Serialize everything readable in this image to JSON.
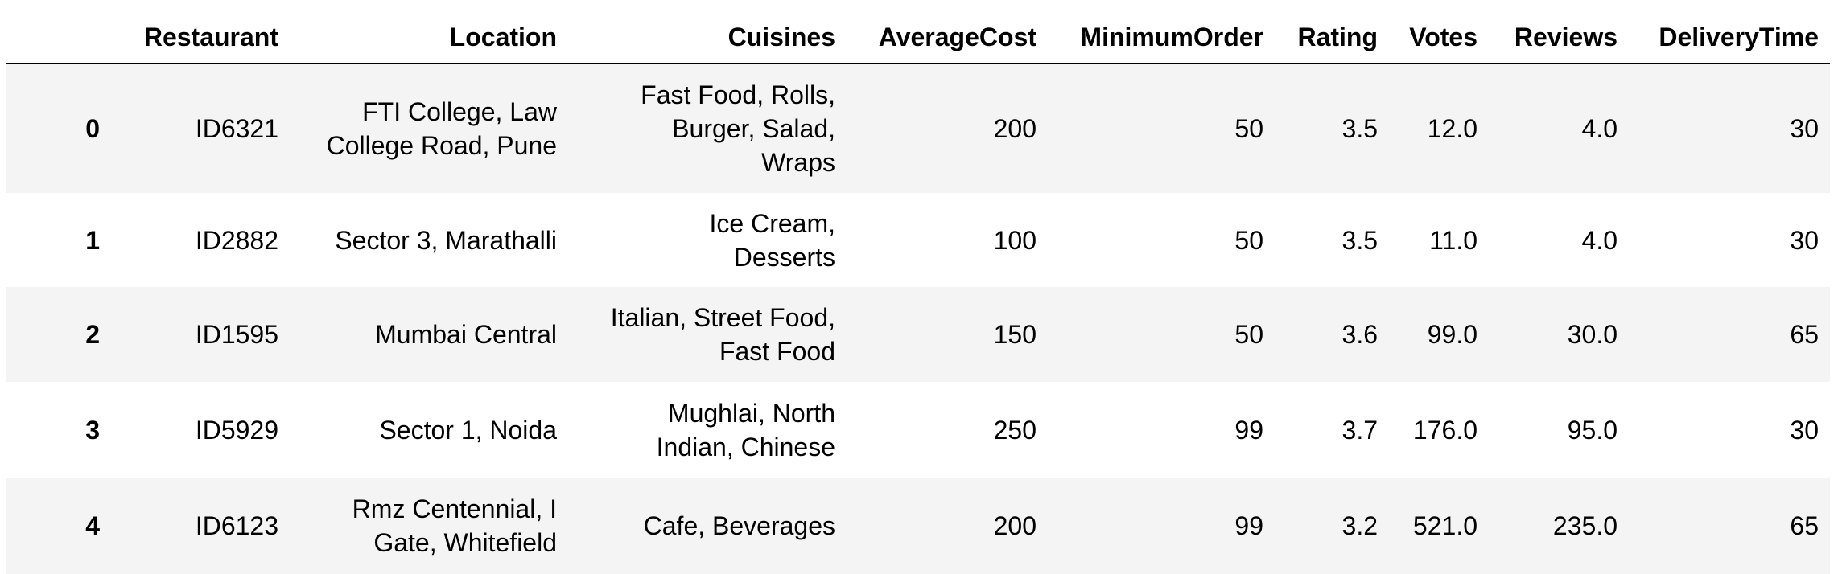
{
  "table": {
    "columns": [
      "",
      "Restaurant",
      "Location",
      "Cuisines",
      "AverageCost",
      "MinimumOrder",
      "Rating",
      "Votes",
      "Reviews",
      "DeliveryTime"
    ],
    "rows": [
      {
        "index": "0",
        "Restaurant": "ID6321",
        "Location": [
          "FTI College, Law",
          "College Road, Pune"
        ],
        "Cuisines": [
          "Fast Food, Rolls,",
          "Burger, Salad,",
          "Wraps"
        ],
        "AverageCost": "200",
        "MinimumOrder": "50",
        "Rating": "3.5",
        "Votes": "12.0",
        "Reviews": "4.0",
        "DeliveryTime": "30"
      },
      {
        "index": "1",
        "Restaurant": "ID2882",
        "Location": [
          "Sector 3, Marathalli"
        ],
        "Cuisines": [
          "Ice Cream,",
          "Desserts"
        ],
        "AverageCost": "100",
        "MinimumOrder": "50",
        "Rating": "3.5",
        "Votes": "11.0",
        "Reviews": "4.0",
        "DeliveryTime": "30"
      },
      {
        "index": "2",
        "Restaurant": "ID1595",
        "Location": [
          "Mumbai Central"
        ],
        "Cuisines": [
          "Italian, Street Food,",
          "Fast Food"
        ],
        "AverageCost": "150",
        "MinimumOrder": "50",
        "Rating": "3.6",
        "Votes": "99.0",
        "Reviews": "30.0",
        "DeliveryTime": "65"
      },
      {
        "index": "3",
        "Restaurant": "ID5929",
        "Location": [
          "Sector 1, Noida"
        ],
        "Cuisines": [
          "Mughlai, North",
          "Indian, Chinese"
        ],
        "AverageCost": "250",
        "MinimumOrder": "99",
        "Rating": "3.7",
        "Votes": "176.0",
        "Reviews": "95.0",
        "DeliveryTime": "30"
      },
      {
        "index": "4",
        "Restaurant": "ID6123",
        "Location": [
          "Rmz Centennial, I",
          "Gate, Whitefield"
        ],
        "Cuisines": [
          "Cafe, Beverages"
        ],
        "AverageCost": "200",
        "MinimumOrder": "99",
        "Rating": "3.2",
        "Votes": "521.0",
        "Reviews": "235.0",
        "DeliveryTime": "65"
      }
    ]
  }
}
